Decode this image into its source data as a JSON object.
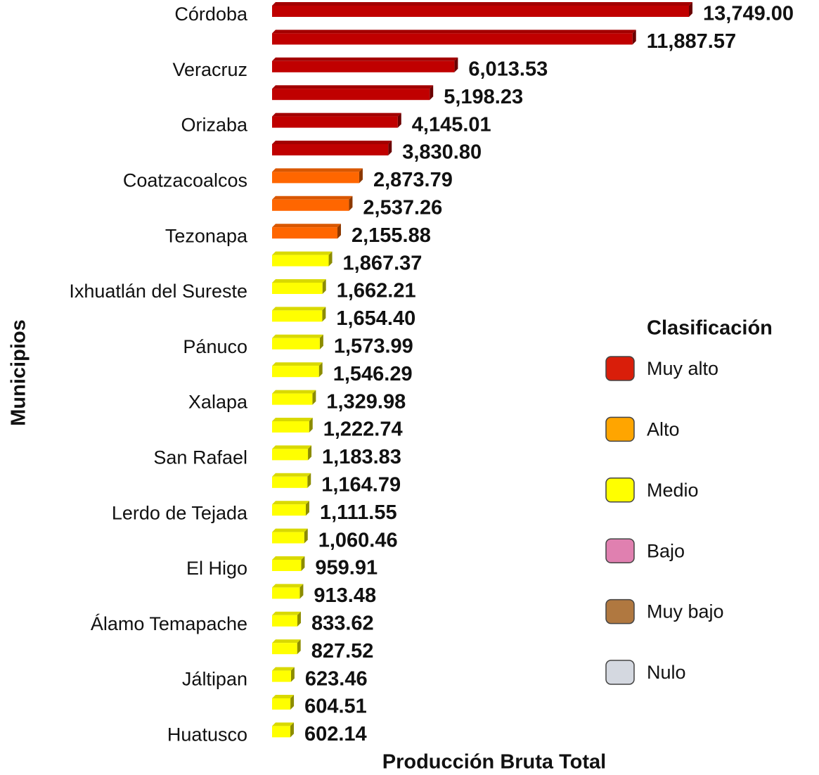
{
  "chart_data": {
    "type": "hbar",
    "x_label": "Producción Bruta Total",
    "y_label": "Municipios",
    "categories": [
      "Córdoba",
      null,
      "Veracruz",
      null,
      "Orizaba",
      null,
      "Coatzacoalcos",
      null,
      "Tezonapa",
      null,
      "Ixhuatlán del Sureste",
      null,
      "Pánuco",
      null,
      "Xalapa",
      null,
      "San Rafael",
      null,
      "Lerdo de Tejada",
      null,
      "El Higo",
      null,
      "Álamo Temapache",
      null,
      "Jáltipan",
      null,
      "Huatusco"
    ],
    "values": [
      13749.0,
      11887.57,
      6013.53,
      5198.23,
      4145.01,
      3830.8,
      2873.79,
      2537.26,
      2155.88,
      1867.37,
      1662.21,
      1654.4,
      1573.99,
      1546.29,
      1329.98,
      1222.74,
      1183.83,
      1164.79,
      1111.55,
      1060.46,
      959.91,
      913.48,
      833.62,
      827.52,
      623.46,
      604.51,
      602.14
    ],
    "value_labels": [
      "13,749.00",
      "11,887.57",
      "6,013.53",
      "5,198.23",
      "4,145.01",
      "3,830.80",
      "2,873.79",
      "2,537.26",
      "2,155.88",
      "1,867.37",
      "1,662.21",
      "1,654.40",
      "1,573.99",
      "1,546.29",
      "1,329.98",
      "1,222.74",
      "1,183.83",
      "1,164.79",
      "1,111.55",
      "1,060.46",
      "959.91",
      "913.48",
      "833.62",
      "827.52",
      "623.46",
      "604.51",
      "602.14"
    ],
    "colors": [
      "#c00000",
      "#c00000",
      "#c00000",
      "#c00000",
      "#c00000",
      "#c00000",
      "#ff6600",
      "#ff6600",
      "#ff6600",
      "#ffff00",
      "#ffff00",
      "#ffff00",
      "#ffff00",
      "#ffff00",
      "#ffff00",
      "#ffff00",
      "#ffff00",
      "#ffff00",
      "#ffff00",
      "#ffff00",
      "#ffff00",
      "#ffff00",
      "#ffff00",
      "#ffff00",
      "#ffff00",
      "#ffff00",
      "#ffff00"
    ],
    "legend": {
      "title": "Clasificación",
      "items": [
        {
          "name": "Muy alto",
          "color": "#d91e0a"
        },
        {
          "name": "Alto",
          "color": "#ffa500"
        },
        {
          "name": "Medio",
          "color": "#ffff00"
        },
        {
          "name": "Bajo",
          "color": "#e080b0"
        },
        {
          "name": "Muy bajo",
          "color": "#b07840"
        },
        {
          "name": "Nulo",
          "color": "#d4d8e0"
        }
      ]
    }
  }
}
